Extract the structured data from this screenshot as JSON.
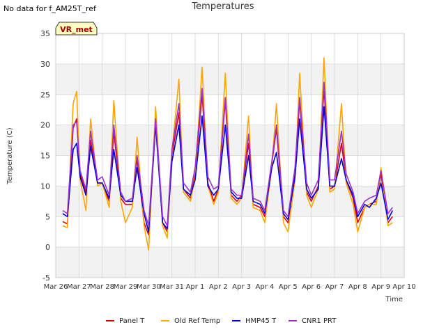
{
  "header": {
    "nodata_text": "No data for f_AM25T_ref",
    "title": "Temperatures",
    "badge": "VR_met"
  },
  "colors": {
    "panel_t": "#dd0000",
    "old_ref": "#ffa500",
    "hmp45": "#0000dd",
    "cnr1": "#9a32cd",
    "band": "#f2f2f2",
    "grid": "#dddddd",
    "badge_bg": "#ffffc0",
    "badge_text": "#990000"
  },
  "chart_data": {
    "type": "line",
    "title": "Temperatures",
    "xlabel": "Time",
    "ylabel": "Temperature (C)",
    "ylim": [
      -5,
      35
    ],
    "yticks": [
      -5,
      0,
      5,
      10,
      15,
      20,
      25,
      30,
      35
    ],
    "xlim": [
      0,
      15
    ],
    "xtick_labels": [
      "Mar 26",
      "Mar 27",
      "Mar 28",
      "Mar 29",
      "Mar 30",
      "Mar 31",
      "Apr 1",
      "Apr 2",
      "Apr 3",
      "Apr 4",
      "Apr 5",
      "Apr 6",
      "Apr 7",
      "Apr 8",
      "Apr 9",
      "Apr 10"
    ],
    "grid": true,
    "legend_position": "bottom",
    "x": [
      0.3,
      0.5,
      0.75,
      0.9,
      1.05,
      1.3,
      1.5,
      1.8,
      2.0,
      2.3,
      2.5,
      2.8,
      3.0,
      3.3,
      3.5,
      3.8,
      4.0,
      4.3,
      4.6,
      4.8,
      5.0,
      5.3,
      5.5,
      5.8,
      6.0,
      6.3,
      6.55,
      6.8,
      7.0,
      7.3,
      7.55,
      7.8,
      8.0,
      8.3,
      8.5,
      8.8,
      9.0,
      9.3,
      9.5,
      9.8,
      10.0,
      10.3,
      10.5,
      10.8,
      11.0,
      11.3,
      11.55,
      11.8,
      12.0,
      12.3,
      12.5,
      12.8,
      13.0,
      13.3,
      13.5,
      13.8,
      14.0,
      14.3,
      14.5
    ],
    "series": [
      {
        "name": "Panel T",
        "color_key": "panel_t",
        "values": [
          4.2,
          3.8,
          19.5,
          21.0,
          12.0,
          9.0,
          17.5,
          10.5,
          10.5,
          7.5,
          19.0,
          8.0,
          7.0,
          7.0,
          14.5,
          4.0,
          2.0,
          20.5,
          4.0,
          2.5,
          15.0,
          22.0,
          9.5,
          8.0,
          12.0,
          25.0,
          10.5,
          7.5,
          9.5,
          24.0,
          8.5,
          7.5,
          8.5,
          17.0,
          7.0,
          6.5,
          5.0,
          13.5,
          19.5,
          5.0,
          4.0,
          12.0,
          24.0,
          9.0,
          7.5,
          10.0,
          26.0,
          9.5,
          10.0,
          17.0,
          11.0,
          8.0,
          4.0,
          6.5,
          7.0,
          7.5,
          12.0,
          4.0,
          5.0
        ]
      },
      {
        "name": "Old Ref Temp",
        "color_key": "old_ref",
        "values": [
          3.5,
          3.2,
          23.5,
          25.5,
          11.0,
          6.0,
          21.0,
          10.0,
          10.5,
          6.5,
          24.0,
          7.5,
          4.0,
          6.5,
          18.0,
          3.5,
          -0.5,
          23.0,
          3.5,
          1.5,
          15.5,
          27.5,
          9.0,
          7.5,
          11.5,
          29.5,
          10.0,
          7.0,
          9.0,
          28.5,
          8.0,
          7.0,
          8.0,
          21.5,
          6.5,
          6.0,
          4.0,
          13.0,
          23.5,
          4.0,
          2.5,
          11.0,
          28.5,
          8.5,
          6.5,
          9.5,
          31.0,
          9.0,
          9.5,
          23.5,
          10.5,
          7.0,
          2.5,
          6.5,
          7.0,
          7.0,
          13.0,
          3.5,
          4.0
        ]
      },
      {
        "name": "HMP45 T",
        "color_key": "hmp45",
        "values": [
          5.5,
          5.0,
          16.0,
          17.0,
          11.5,
          8.5,
          16.5,
          10.5,
          10.5,
          8.0,
          16.0,
          8.5,
          7.5,
          7.5,
          13.0,
          5.5,
          2.5,
          20.0,
          4.0,
          3.0,
          14.0,
          20.0,
          9.5,
          8.5,
          11.0,
          21.5,
          10.0,
          8.5,
          9.5,
          20.0,
          9.0,
          8.0,
          8.0,
          15.0,
          7.5,
          7.0,
          5.5,
          13.0,
          15.5,
          5.5,
          4.5,
          11.5,
          21.0,
          9.5,
          8.0,
          9.5,
          23.0,
          10.0,
          10.0,
          14.5,
          11.0,
          8.5,
          5.0,
          7.0,
          6.5,
          8.0,
          10.5,
          4.5,
          6.0
        ]
      },
      {
        "name": "CNR1 PRT",
        "color_key": "cnr1",
        "values": [
          6.0,
          5.5,
          20.0,
          20.5,
          12.5,
          9.5,
          19.0,
          11.0,
          11.5,
          8.5,
          20.0,
          9.0,
          7.5,
          8.0,
          15.0,
          6.0,
          3.5,
          21.0,
          5.0,
          3.5,
          16.0,
          23.5,
          10.5,
          9.0,
          13.0,
          26.0,
          11.5,
          9.5,
          10.0,
          24.5,
          9.5,
          8.5,
          8.5,
          18.5,
          8.0,
          7.5,
          6.0,
          14.0,
          20.0,
          6.0,
          5.0,
          13.0,
          24.5,
          10.5,
          8.5,
          11.0,
          27.0,
          11.0,
          11.0,
          19.0,
          12.0,
          9.0,
          5.5,
          7.5,
          8.0,
          8.5,
          12.5,
          5.5,
          6.5
        ]
      }
    ]
  }
}
